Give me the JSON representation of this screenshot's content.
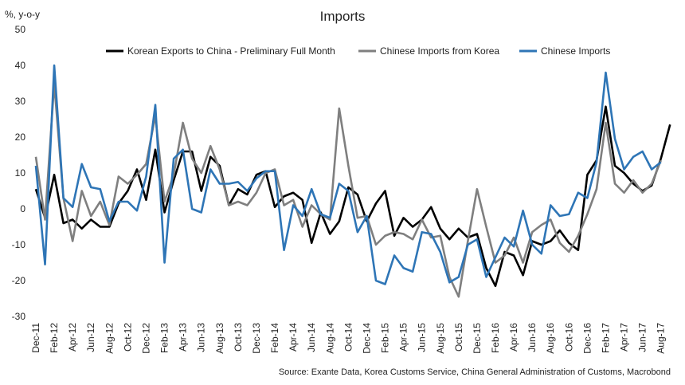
{
  "chart_data": {
    "type": "line",
    "title": "Imports",
    "y_label": "%, y-o-y",
    "source": "Source: Exante Data, Korea Customs Service, China General Administration of Customs, Macrobond",
    "categories": [
      "Dec-11",
      null,
      "Feb-12",
      null,
      "Apr-12",
      null,
      "Jun-12",
      null,
      "Aug-12",
      null,
      "Oct-12",
      null,
      "Dec-12",
      null,
      "Feb-13",
      null,
      "Apr-13",
      null,
      "Jun-13",
      null,
      "Aug-13",
      null,
      "Oct-13",
      null,
      "Dec-13",
      null,
      "Feb-14",
      null,
      "Apr-14",
      null,
      "Jun-14",
      null,
      "Aug-14",
      null,
      "Oct-14",
      null,
      "Dec-14",
      null,
      "Feb-15",
      null,
      "Apr-15",
      null,
      "Jun-15",
      null,
      "Aug-15",
      null,
      "Oct-15",
      null,
      "Dec-15",
      null,
      "Feb-16",
      null,
      "Apr-16",
      null,
      "Jun-16",
      null,
      "Aug-16",
      null,
      "Oct-16",
      null,
      "Dec-16",
      null,
      "Feb-17",
      null,
      "Apr-17",
      null,
      "Jun-17",
      null,
      "Aug-17",
      null
    ],
    "series": [
      {
        "name": "Korean Exports to China - Preliminary Full Month",
        "color": "#000000",
        "values": [
          5.5,
          -2.5,
          9.5,
          -4,
          -3,
          -5.5,
          -3,
          -5,
          -5,
          1.5,
          5,
          11,
          2.5,
          16.5,
          -1,
          8,
          16,
          16,
          5,
          14.5,
          12,
          1,
          5.5,
          4,
          9.5,
          10.5,
          0.5,
          3.5,
          4.5,
          2.5,
          -9.5,
          -1,
          -7,
          -3.5,
          6,
          4,
          -3.5,
          1.5,
          5,
          -7.5,
          -2.5,
          -5,
          -3,
          0.5,
          -5.5,
          -8.5,
          -5.5,
          -8,
          -7,
          -16.5,
          -21.5,
          -12,
          -13,
          -18.5,
          -9,
          -10,
          -9,
          -6,
          -9.5,
          -11.5,
          9.5,
          13.5,
          28.5,
          12,
          10,
          7,
          5,
          6.5,
          14,
          23.5
        ]
      },
      {
        "name": "Chinese Imports from Korea",
        "color": "#7f7f7f",
        "values": [
          14.5,
          -3,
          35,
          3,
          -9,
          5,
          -2,
          2,
          -4.5,
          9,
          7,
          9.5,
          12.5,
          26,
          2,
          9.5,
          24,
          14,
          10,
          17.5,
          11,
          1,
          2,
          1,
          4.5,
          10,
          11,
          1,
          2.5,
          -5,
          1,
          -1.5,
          -3,
          28,
          12,
          -2.5,
          -2,
          -10,
          -7.5,
          -6.5,
          -7,
          -8.5,
          -3,
          -8,
          -7.5,
          -19,
          -24.5,
          -9,
          5.5,
          -5,
          -15,
          -13,
          -8,
          -15,
          -6.5,
          -4.5,
          -3,
          -9.5,
          -12,
          -7.5,
          -1.5,
          5.5,
          24,
          7,
          4.5,
          8,
          4.5,
          7,
          13.5,
          null
        ]
      },
      {
        "name": "Chinese Imports",
        "color": "#2e75b6",
        "values": [
          12,
          -15.5,
          40,
          3,
          0.5,
          12.5,
          6,
          5.5,
          -3.5,
          2,
          2,
          -0.5,
          9,
          29,
          -15,
          14,
          16.5,
          0,
          -1,
          11,
          7,
          7,
          7.5,
          5,
          8.5,
          10.5,
          10.5,
          -11.5,
          1,
          -2,
          5.5,
          -1.5,
          -2.5,
          7,
          5,
          -6.5,
          -2,
          -20,
          -21,
          -13,
          -16.5,
          -17.5,
          -6.5,
          -7,
          -12,
          -20.5,
          -19,
          -10,
          -8.5,
          -19,
          -13.5,
          -8,
          -10.5,
          -0.5,
          -10,
          -12.5,
          1,
          -2,
          -1.5,
          4.5,
          3,
          13,
          38,
          19.5,
          11,
          14.5,
          16,
          11,
          13,
          null
        ]
      }
    ],
    "ylim": [
      -30,
      50
    ],
    "yticks": [
      -30,
      -20,
      -10,
      0,
      10,
      20,
      30,
      40,
      50
    ],
    "grid": false
  }
}
